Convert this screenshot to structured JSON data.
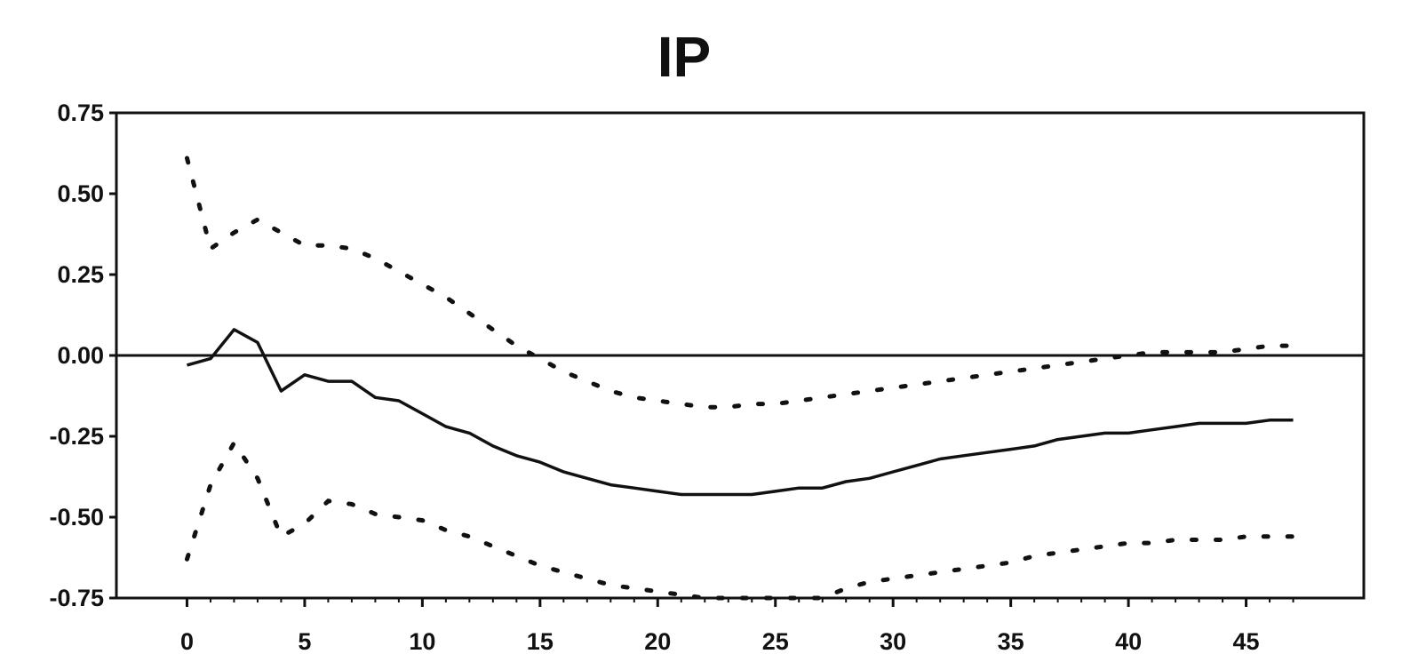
{
  "chart_data": {
    "type": "line",
    "title": "IP",
    "xlabel": "",
    "ylabel": "",
    "xlim": [
      -3,
      50
    ],
    "ylim": [
      -0.75,
      0.75
    ],
    "x_ticks": [
      0,
      5,
      10,
      15,
      20,
      25,
      30,
      35,
      40,
      45
    ],
    "x_tick_labels": [
      "0",
      "5",
      "10",
      "15",
      "20",
      "25",
      "30",
      "35",
      "40",
      "45"
    ],
    "y_ticks": [
      0.75,
      0.5,
      0.25,
      0.0,
      -0.25,
      -0.5,
      -0.75
    ],
    "y_tick_labels": [
      "0.75",
      "0.50",
      "0.25",
      "0.00",
      "-0.25",
      "-0.50",
      "-0.75"
    ],
    "grid": false,
    "legend": "none",
    "zero_line": true,
    "x": [
      0,
      1,
      2,
      3,
      4,
      5,
      6,
      7,
      8,
      9,
      10,
      11,
      12,
      13,
      14,
      15,
      16,
      17,
      18,
      19,
      20,
      21,
      22,
      23,
      24,
      25,
      26,
      27,
      28,
      29,
      30,
      31,
      32,
      33,
      34,
      35,
      36,
      37,
      38,
      39,
      40,
      41,
      42,
      43,
      44,
      45,
      46,
      47
    ],
    "series": [
      {
        "style": "solid",
        "values": [
          -0.03,
          -0.01,
          0.08,
          0.04,
          -0.11,
          -0.06,
          -0.08,
          -0.08,
          -0.13,
          -0.14,
          -0.18,
          -0.22,
          -0.24,
          -0.28,
          -0.31,
          -0.33,
          -0.36,
          -0.38,
          -0.4,
          -0.41,
          -0.42,
          -0.43,
          -0.43,
          -0.43,
          -0.43,
          -0.42,
          -0.41,
          -0.41,
          -0.39,
          -0.38,
          -0.36,
          -0.34,
          -0.32,
          -0.31,
          -0.3,
          -0.29,
          -0.28,
          -0.26,
          -0.25,
          -0.24,
          -0.24,
          -0.23,
          -0.22,
          -0.21,
          -0.21,
          -0.21,
          -0.2,
          -0.2
        ]
      },
      {
        "style": "dotted",
        "values": [
          0.61,
          0.33,
          0.38,
          0.42,
          0.38,
          0.34,
          0.34,
          0.33,
          0.3,
          0.26,
          0.22,
          0.18,
          0.13,
          0.08,
          0.03,
          -0.01,
          -0.05,
          -0.08,
          -0.11,
          -0.13,
          -0.14,
          -0.15,
          -0.16,
          -0.16,
          -0.15,
          -0.15,
          -0.14,
          -0.13,
          -0.12,
          -0.11,
          -0.1,
          -0.09,
          -0.08,
          -0.07,
          -0.06,
          -0.05,
          -0.04,
          -0.03,
          -0.02,
          -0.01,
          0.0,
          0.01,
          0.01,
          0.01,
          0.01,
          0.02,
          0.03,
          0.03
        ]
      },
      {
        "style": "dotted",
        "values": [
          -0.63,
          -0.4,
          -0.27,
          -0.38,
          -0.56,
          -0.52,
          -0.45,
          -0.46,
          -0.49,
          -0.5,
          -0.51,
          -0.54,
          -0.56,
          -0.59,
          -0.62,
          -0.65,
          -0.67,
          -0.69,
          -0.71,
          -0.72,
          -0.73,
          -0.74,
          -0.75,
          -0.75,
          -0.75,
          -0.75,
          -0.75,
          -0.75,
          -0.72,
          -0.7,
          -0.69,
          -0.68,
          -0.67,
          -0.66,
          -0.65,
          -0.64,
          -0.62,
          -0.61,
          -0.6,
          -0.59,
          -0.58,
          -0.58,
          -0.57,
          -0.57,
          -0.57,
          -0.56,
          -0.56,
          -0.56
        ]
      }
    ]
  }
}
